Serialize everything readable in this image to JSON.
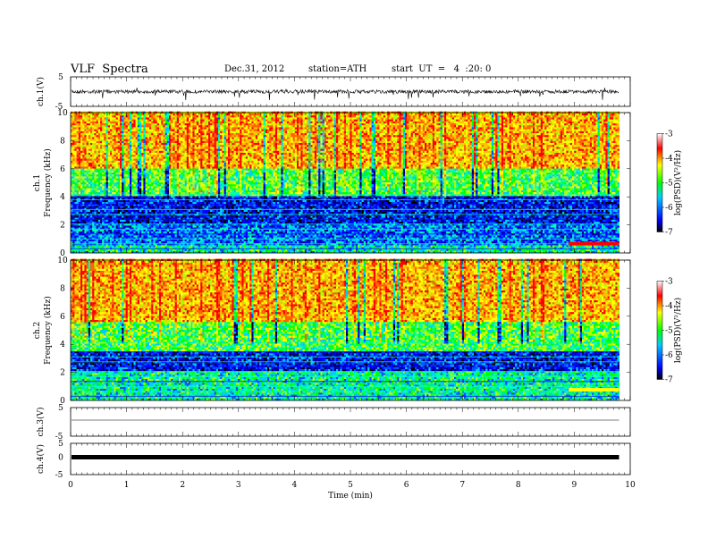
{
  "header": {
    "title": "VLF  Spectra",
    "date": "Dec.31, 2012",
    "station": "station=ATH",
    "start": "start  UT  =   4  :20: 0"
  },
  "chart_data": [
    {
      "type": "line",
      "panel": "ch1_waveform",
      "ylabel": "ch.1(V)",
      "yticks": [
        "5",
        "-5"
      ],
      "ylim": [
        -5,
        5
      ],
      "xlim": [
        0,
        10
      ],
      "baseline": 0,
      "trace_color": "#000000"
    },
    {
      "type": "heatmap",
      "panel": "ch1_spectrogram",
      "ylabel": "ch.1\nFrequency  (kHz)",
      "ylabel_line1": "ch.1",
      "ylabel_line2": "Frequency  (kHz)",
      "yticks": [
        "0",
        "2",
        "4",
        "6",
        "8",
        "10"
      ],
      "ylim": [
        0,
        10
      ],
      "xlim": [
        0,
        9.8
      ],
      "colorbar": {
        "label": "log(PSD)(V²/Hz)",
        "ticks": [
          "-3",
          "-4",
          "-5",
          "-6",
          "-7"
        ],
        "range": [
          -7,
          -3
        ],
        "colors": [
          "#000000",
          "#0000ff",
          "#00c8ff",
          "#00ff00",
          "#ffff00",
          "#ff0000",
          "#ffffff"
        ]
      },
      "bands": [
        {
          "from_khz": 0,
          "to_khz": 0.5,
          "level": "cyan-green"
        },
        {
          "from_khz": 0.5,
          "to_khz": 2.0,
          "level": "blue/cyan"
        },
        {
          "from_khz": 2.0,
          "to_khz": 4.0,
          "level": "blue"
        },
        {
          "from_khz": 4.0,
          "to_khz": 6.0,
          "level": "green"
        },
        {
          "from_khz": 6.0,
          "to_khz": 10.0,
          "level": "yellow/red"
        }
      ],
      "event": {
        "t_from_min": 8.9,
        "t_to_min": 9.8,
        "freq_khz": 0.6,
        "level": "red"
      }
    },
    {
      "type": "heatmap",
      "panel": "ch2_spectrogram",
      "ylabel": "ch.2\nFrequency  (kHz)",
      "ylabel_line1": "ch.2",
      "ylabel_line2": "Frequency  (kHz)",
      "yticks": [
        "0",
        "2",
        "4",
        "6",
        "8",
        "10"
      ],
      "ylim": [
        0,
        10
      ],
      "xlim": [
        0,
        9.8
      ],
      "colorbar": {
        "label": "log(PSD)(V²/Hz)",
        "ticks": [
          "-3",
          "-4",
          "-5",
          "-6",
          "-7"
        ],
        "range": [
          -7,
          -3
        ]
      },
      "bands": [
        {
          "from_khz": 0,
          "to_khz": 0.5,
          "level": "cyan-green"
        },
        {
          "from_khz": 0.5,
          "to_khz": 2.0,
          "level": "green/cyan"
        },
        {
          "from_khz": 2.0,
          "to_khz": 3.5,
          "level": "blue"
        },
        {
          "from_khz": 3.5,
          "to_khz": 5.5,
          "level": "green"
        },
        {
          "from_khz": 5.5,
          "to_khz": 10.0,
          "level": "yellow/red"
        }
      ],
      "event": {
        "t_from_min": 8.9,
        "t_to_min": 9.8,
        "freq_khz": 0.7,
        "level": "yellow"
      }
    },
    {
      "type": "line",
      "panel": "ch3_waveform",
      "ylabel": "ch.3(V)",
      "yticks": [
        "5",
        "-5"
      ],
      "ylim": [
        -5,
        5
      ],
      "xlim": [
        0,
        10
      ],
      "baseline": 0
    },
    {
      "type": "line",
      "panel": "ch4_waveform",
      "ylabel": "ch.4(V)",
      "yticks": [
        "5",
        "0",
        "-5"
      ],
      "ylim": [
        -5,
        5
      ],
      "xlim": [
        0,
        10
      ],
      "baseline": 0
    }
  ],
  "xaxis": {
    "label": "Time  (min)",
    "ticks": [
      "0",
      "1",
      "2",
      "3",
      "4",
      "5",
      "6",
      "7",
      "8",
      "9",
      "10"
    ],
    "range": [
      0,
      10
    ]
  }
}
